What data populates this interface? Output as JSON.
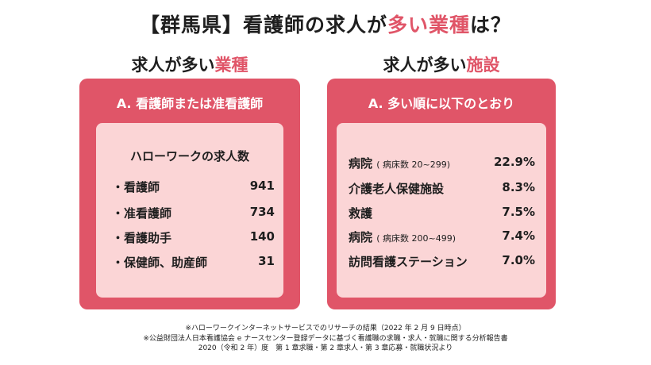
{
  "title": {
    "part1": "【群馬県】看護師の求人が",
    "accent": "多い業種",
    "part2": "は？"
  },
  "left": {
    "heading_plain": "求人が多い",
    "heading_accent": "業種",
    "panel_header": "A. 看護師または准看護師",
    "subtitle": "ハローワークの求人数",
    "rows": [
      {
        "label": "・看護師",
        "value": "941"
      },
      {
        "label": "・准看護師",
        "value": "734"
      },
      {
        "label": "・看護助手",
        "value": "140"
      },
      {
        "label": "・保健師、助産師",
        "value": "31"
      }
    ]
  },
  "right": {
    "heading_plain": "求人が多い",
    "heading_accent": "施設",
    "panel_header": "A. 多い順に以下のとおり",
    "rows": [
      {
        "label": "病院",
        "note": "( 病床数 20~299)",
        "value": "22.9%"
      },
      {
        "label": "介護老人保健施設",
        "note": "",
        "value": "8.3%"
      },
      {
        "label": "救護",
        "note": "",
        "value": "7.5%"
      },
      {
        "label": "病院",
        "note": "( 病床数 200~499)",
        "value": "7.4%"
      },
      {
        "label": "訪問看護ステーション",
        "note": "",
        "value": "7.0%"
      }
    ]
  },
  "footnotes": [
    "※ハローワークインターネットサービスでのリサーチの結果（2022 年 2 月 9 日時点）",
    "※公益財団法人日本看護協会 e ナースセンター登録データに基づく看護職の求職・求人・就職に関する分析報告書",
    "2020（令和 2 年）度　第 1 章求職・第 2 章求人・第 3 章応募・就職状況より"
  ],
  "colors": {
    "accent": "#e05568",
    "inner": "#fbd5d6"
  }
}
